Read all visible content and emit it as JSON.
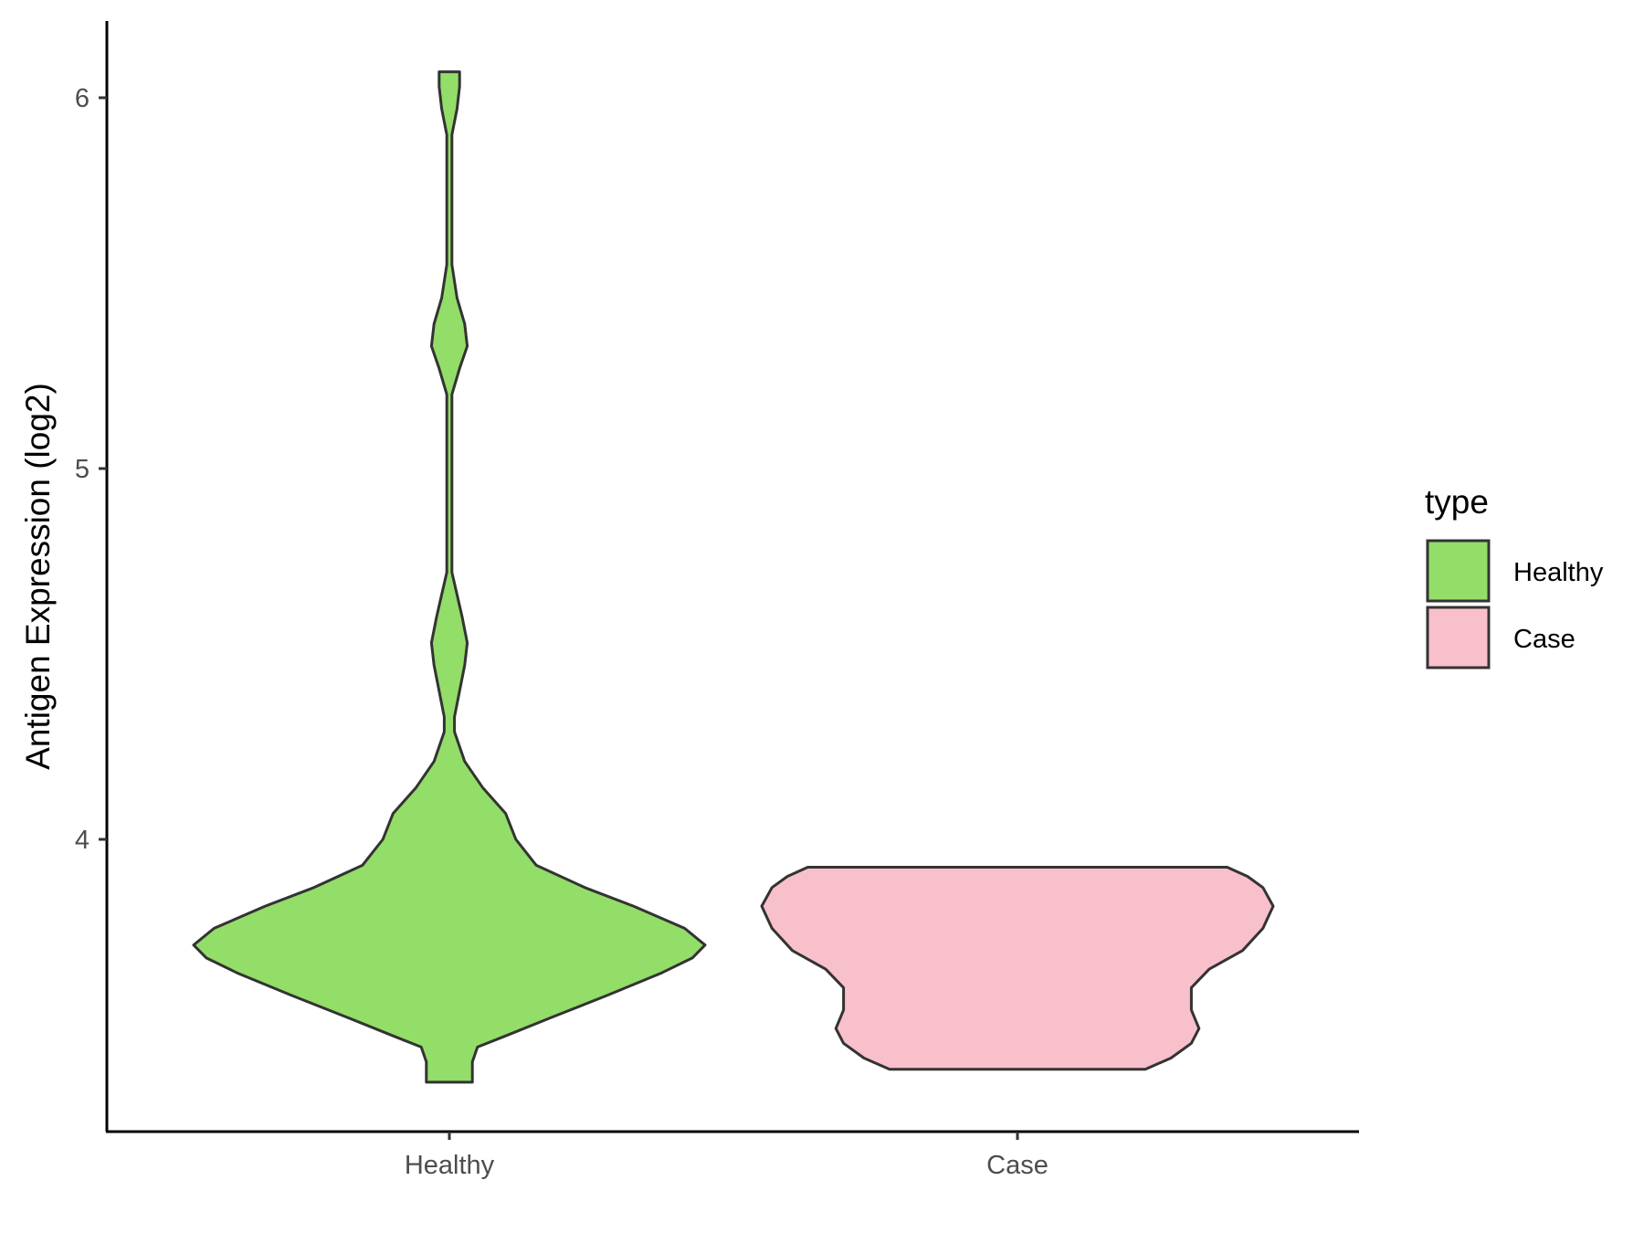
{
  "chart_data": {
    "type": "violin",
    "title": "",
    "xlabel": "",
    "ylabel": "Antigen Expression (log2)",
    "ylim": [
      3.22,
      6.2
    ],
    "yticks": [
      4,
      5,
      6
    ],
    "categories": [
      "Healthy",
      "Case"
    ],
    "legend": {
      "title": "type",
      "position": "right",
      "entries": [
        {
          "label": "Healthy",
          "color": "#93dd69"
        },
        {
          "label": "Case",
          "color": "#f8c0cb"
        }
      ]
    },
    "series": [
      {
        "name": "Healthy",
        "color": "#93dd69",
        "min": 3.345,
        "max": 6.07,
        "density": [
          [
            3.345,
            0.09
          ],
          [
            3.4,
            0.09
          ],
          [
            3.44,
            0.11
          ],
          [
            3.47,
            0.22
          ],
          [
            3.52,
            0.4
          ],
          [
            3.58,
            0.62
          ],
          [
            3.64,
            0.83
          ],
          [
            3.68,
            0.95
          ],
          [
            3.715,
            1.0
          ],
          [
            3.76,
            0.92
          ],
          [
            3.82,
            0.72
          ],
          [
            3.87,
            0.53
          ],
          [
            3.93,
            0.34
          ],
          [
            4.0,
            0.26
          ],
          [
            4.07,
            0.22
          ],
          [
            4.14,
            0.13
          ],
          [
            4.21,
            0.06
          ],
          [
            4.29,
            0.02
          ],
          [
            4.33,
            0.02
          ],
          [
            4.4,
            0.04
          ],
          [
            4.47,
            0.06
          ],
          [
            4.53,
            0.07
          ],
          [
            4.6,
            0.05
          ],
          [
            4.66,
            0.03
          ],
          [
            4.72,
            0.01
          ],
          [
            5.0,
            0.01
          ],
          [
            5.2,
            0.01
          ],
          [
            5.27,
            0.04
          ],
          [
            5.33,
            0.07
          ],
          [
            5.39,
            0.06
          ],
          [
            5.46,
            0.03
          ],
          [
            5.55,
            0.01
          ],
          [
            5.9,
            0.01
          ],
          [
            5.97,
            0.03
          ],
          [
            6.03,
            0.04
          ],
          [
            6.07,
            0.04
          ]
        ]
      },
      {
        "name": "Case",
        "color": "#f8c0cb",
        "min": 3.38,
        "max": 3.925,
        "density": [
          [
            3.38,
            0.5
          ],
          [
            3.41,
            0.6
          ],
          [
            3.45,
            0.68
          ],
          [
            3.49,
            0.71
          ],
          [
            3.54,
            0.68
          ],
          [
            3.6,
            0.68
          ],
          [
            3.65,
            0.75
          ],
          [
            3.7,
            0.88
          ],
          [
            3.76,
            0.96
          ],
          [
            3.82,
            1.0
          ],
          [
            3.87,
            0.96
          ],
          [
            3.9,
            0.9
          ],
          [
            3.925,
            0.82
          ]
        ]
      }
    ]
  }
}
